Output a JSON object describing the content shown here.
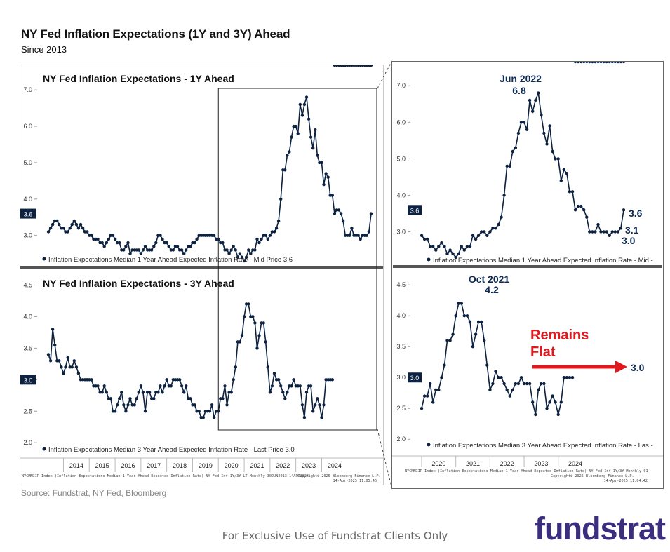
{
  "header": {
    "title": "NY Fed Inflation Expectations (1Y and 3Y) Ahead",
    "subtitle": "Since 2013"
  },
  "source": "Source: Fundstrat, NY Fed, Bloomberg",
  "footer": "For Exclusive Use of Fundstrat Clients Only",
  "logo": "fundstrat",
  "colors": {
    "line": "#0d2240",
    "label": "#0d2a52",
    "callout": "#e0191f",
    "gray_bar": "#555555"
  },
  "left_chart": {
    "years": [
      "2014",
      "2015",
      "2016",
      "2017",
      "2018",
      "2019",
      "2020",
      "2021",
      "2022",
      "2023",
      "2024"
    ],
    "footnote_left": "NYCMMIIR Index (Inflation Expectations Median 1 Year Ahead Expected Inflation Rate) NY Fed Inf 1Y/3Y LT  Monthly 30JUN2013-14APR2025",
    "footnote_right": "Copyright© 2025 Bloomberg Finance L.P.",
    "footnote_date": "14-Apr-2025 11:05:46"
  },
  "right_chart": {
    "years": [
      "2020",
      "2021",
      "2022",
      "2023",
      "2024"
    ],
    "footnote_left": "NYCMMIIR Index (Inflation Expectations Median 1 Year Ahead Expected Inflation Rate) NY Fed Inf 1Y/3Y Monthly 01",
    "footnote_right": "Copyright© 2025 Bloomberg Finance L.P.",
    "footnote_date": "14-Apr-2025 11:04:42"
  },
  "annotations": {
    "peak_1y_date": "Jun 2022",
    "peak_1y_value": "6.8",
    "last_1y": "3.6",
    "mid_1y_a": "3.1",
    "mid_1y_b": "3.0",
    "peak_3y_date": "Oct 2021",
    "peak_3y_value": "4.2",
    "remains_line1": "Remains",
    "remains_line2": "Flat",
    "last_3y": "3.0"
  },
  "chart_data": [
    {
      "type": "line",
      "title": "NY Fed Inflation Expectations - 1Y Ahead",
      "legend": "Inflation Expectations Median 1 Year Ahead Expected Inflation Rate - Mid Price 3.6",
      "last_value_tag": "3.6",
      "ylim": [
        2.3,
        7.1
      ],
      "yticks": [
        "7.0",
        "6.0",
        "5.0",
        "4.0",
        "3.0",
        "2.0"
      ],
      "x_start": "2013-06",
      "x_end": "2025-03",
      "values": [
        3.1,
        3.2,
        3.3,
        3.4,
        3.4,
        3.3,
        3.2,
        3.2,
        3.1,
        3.1,
        3.2,
        3.3,
        3.4,
        3.3,
        3.2,
        3.3,
        3.2,
        3.1,
        3.1,
        3.0,
        3.0,
        2.9,
        2.9,
        2.9,
        2.8,
        2.8,
        2.7,
        2.8,
        2.9,
        3.0,
        3.0,
        2.9,
        2.8,
        2.8,
        2.6,
        2.6,
        2.7,
        2.8,
        2.5,
        2.6,
        2.6,
        2.6,
        2.6,
        2.5,
        2.6,
        2.7,
        2.6,
        2.6,
        2.6,
        2.7,
        2.8,
        3.0,
        3.0,
        2.9,
        2.8,
        2.8,
        2.7,
        2.6,
        2.6,
        2.7,
        2.7,
        2.6,
        2.6,
        2.5,
        2.6,
        2.7,
        2.7,
        2.8,
        2.8,
        2.9,
        3.0,
        3.0,
        3.0,
        3.0,
        3.0,
        3.0,
        3.0,
        3.0,
        2.9,
        2.9,
        2.8,
        2.8,
        2.6,
        2.6,
        2.5,
        2.6,
        2.7,
        2.6,
        2.4,
        2.5,
        2.4,
        2.3,
        2.4,
        2.6,
        2.5,
        2.6,
        2.6,
        2.9,
        2.8,
        2.9,
        3.0,
        3.0,
        2.9,
        3.0,
        3.1,
        3.1,
        3.2,
        3.4,
        4.0,
        4.8,
        4.8,
        5.2,
        5.3,
        5.7,
        6.0,
        6.0,
        5.8,
        6.6,
        6.3,
        6.6,
        6.8,
        6.2,
        5.7,
        5.4,
        5.9,
        5.2,
        5.0,
        5.0,
        4.4,
        4.7,
        4.6,
        4.1,
        4.1,
        3.6,
        3.7,
        3.7,
        3.6,
        3.4,
        3.0,
        3.0,
        3.0,
        3.2,
        3.0,
        3.0,
        3.0,
        2.9,
        3.0,
        3.0,
        3.0,
        3.1,
        3.6
      ]
    },
    {
      "type": "line",
      "title": "NY Fed Inflation Expectations - 3Y Ahead",
      "legend": "Inflation Expectations Median 3 Year Ahead Expected Inflation Rate - Last Price 3.0",
      "last_value_tag": "3.0",
      "ylim": [
        1.98,
        4.65
      ],
      "yticks": [
        "4.5",
        "4.0",
        "3.5",
        "3.0",
        "2.5",
        "2.0"
      ],
      "x_start": "2013-06",
      "x_end": "2025-03",
      "values": [
        3.4,
        3.3,
        3.8,
        3.55,
        3.3,
        3.3,
        3.2,
        3.1,
        3.2,
        3.35,
        3.2,
        3.2,
        3.3,
        3.2,
        3.1,
        3.0,
        3.0,
        3.0,
        3.0,
        3.0,
        3.0,
        2.9,
        2.9,
        2.9,
        2.8,
        2.8,
        2.9,
        2.8,
        2.7,
        2.7,
        2.5,
        2.5,
        2.6,
        2.7,
        2.8,
        2.6,
        2.5,
        2.6,
        2.7,
        2.6,
        2.6,
        2.7,
        2.8,
        2.9,
        2.8,
        2.5,
        2.8,
        2.8,
        2.7,
        2.7,
        2.8,
        2.8,
        2.9,
        2.8,
        2.9,
        3.0,
        2.9,
        2.9,
        3.0,
        3.0,
        3.0,
        3.0,
        2.9,
        2.8,
        2.9,
        2.7,
        2.7,
        2.6,
        2.6,
        2.5,
        2.5,
        2.4,
        2.4,
        2.5,
        2.5,
        2.5,
        2.6,
        2.4,
        2.5,
        2.5,
        2.7,
        2.7,
        2.9,
        2.6,
        2.8,
        2.8,
        3.0,
        3.2,
        3.6,
        3.6,
        3.7,
        4.0,
        4.2,
        4.2,
        4.0,
        4.0,
        3.9,
        3.5,
        3.7,
        3.9,
        3.9,
        3.6,
        3.2,
        2.8,
        2.9,
        3.1,
        3.0,
        3.0,
        2.9,
        2.8,
        2.7,
        2.8,
        2.9,
        2.9,
        3.0,
        2.9,
        2.9,
        2.9,
        2.6,
        2.4,
        2.8,
        2.9,
        2.9,
        2.5,
        2.6,
        2.7,
        2.6,
        2.4,
        2.6,
        3.0,
        3.0,
        3.0,
        3.0
      ]
    }
  ]
}
